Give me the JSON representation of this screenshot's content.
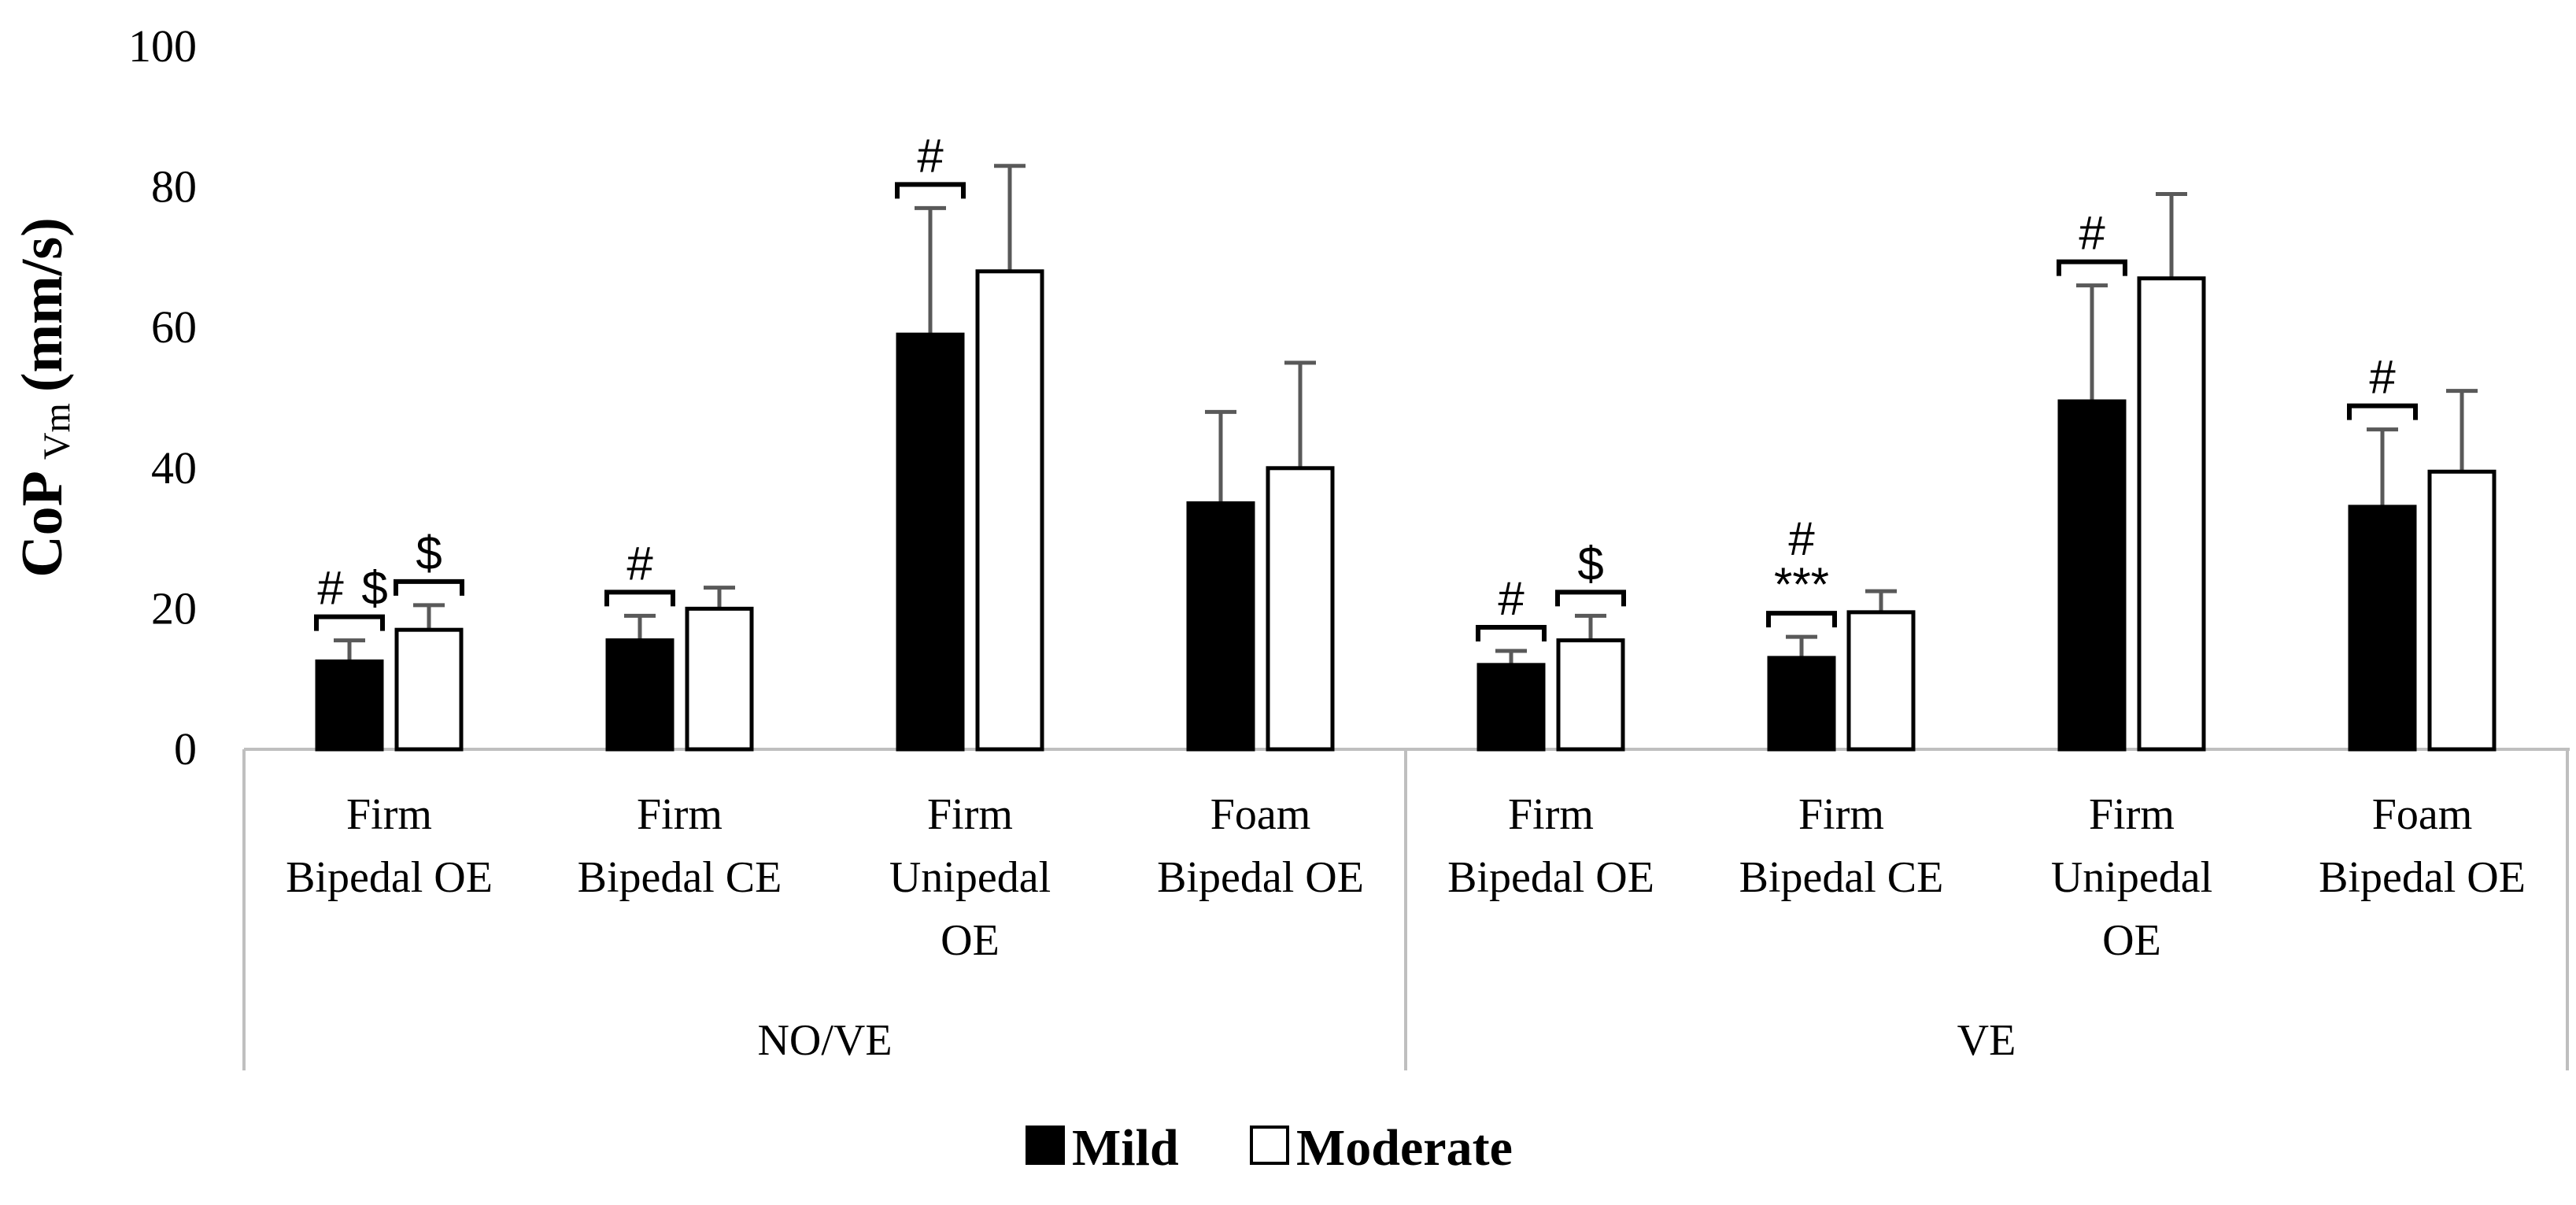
{
  "chart_data": {
    "type": "bar",
    "ylabel": "CoP",
    "ylabel_sub": "Vm",
    "ylabel_unit": "(mm/s)",
    "ylim": [
      0,
      100
    ],
    "yticks": [
      0,
      20,
      40,
      60,
      80,
      100
    ],
    "groups": [
      {
        "name": "NO/VE",
        "categories": [
          [
            "Firm",
            "Bipedal   OE"
          ],
          [
            "Firm",
            "Bipedal   CE"
          ],
          [
            "Firm",
            "Unipedal",
            "OE"
          ],
          [
            "Foam",
            "Bipedal   OE"
          ]
        ]
      },
      {
        "name": "VE",
        "categories": [
          [
            "Firm",
            "Bipedal   OE"
          ],
          [
            "Firm",
            "Bipedal   CE"
          ],
          [
            "Firm",
            "Unipedal",
            "OE"
          ],
          [
            "Foam",
            "Bipedal   OE"
          ]
        ]
      }
    ],
    "series": [
      {
        "name": "Mild",
        "color": "#000000",
        "values": [
          12.5,
          15.5,
          59,
          35,
          12,
          13,
          49.5,
          34.5
        ],
        "errors": [
          3,
          3.5,
          18,
          13,
          2,
          3,
          16.5,
          11
        ]
      },
      {
        "name": "Moderate",
        "color": "#ffffff",
        "values": [
          17,
          20,
          68,
          40,
          15.5,
          19.5,
          67,
          39.5
        ],
        "errors": [
          3.5,
          3,
          15,
          15,
          3.5,
          3,
          12,
          11.5
        ]
      }
    ],
    "annotations": [
      {
        "category": 0,
        "series": "Mild",
        "symbols": [
          "#",
          "$"
        ]
      },
      {
        "category": 0,
        "series": "Moderate",
        "symbols": [
          "$"
        ]
      },
      {
        "category": 1,
        "series": "Mild",
        "symbols": [
          "#"
        ]
      },
      {
        "category": 2,
        "series": "Mild",
        "symbols": [
          "#"
        ]
      },
      {
        "category": 4,
        "series": "Mild",
        "symbols": [
          "#"
        ]
      },
      {
        "category": 4,
        "series": "Moderate",
        "symbols": [
          "$"
        ]
      },
      {
        "category": 5,
        "series": "Mild",
        "symbols": [
          "#",
          "***"
        ]
      },
      {
        "category": 6,
        "series": "Mild",
        "symbols": [
          "#"
        ]
      },
      {
        "category": 7,
        "series": "Mild",
        "symbols": [
          "#"
        ]
      }
    ],
    "legend": {
      "position": "bottom",
      "entries": [
        "Mild",
        "Moderate"
      ]
    },
    "grid": false
  }
}
